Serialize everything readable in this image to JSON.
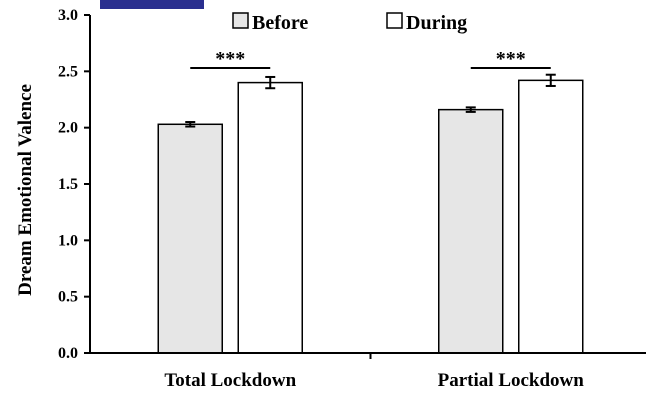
{
  "chart_data": {
    "type": "bar",
    "ylabel": "Dream Emotional Valence",
    "ylim": [
      0,
      3.0
    ],
    "yticks": [
      "0.0",
      "0.5",
      "1.0",
      "1.5",
      "2.0",
      "2.5",
      "3.0"
    ],
    "categories": [
      "Total Lockdown",
      "Partial Lockdown"
    ],
    "series": [
      {
        "name": "Before",
        "values": [
          2.03,
          2.16
        ],
        "errors": [
          0.02,
          0.02
        ],
        "color": "#e6e6e6"
      },
      {
        "name": "During",
        "values": [
          2.4,
          2.42
        ],
        "errors": [
          0.05,
          0.05
        ],
        "color": "#ffffff"
      }
    ],
    "annotations": [
      "***",
      "***"
    ],
    "legend_position": "top",
    "grid": false
  },
  "header_bar_color": "#2a2f8f"
}
